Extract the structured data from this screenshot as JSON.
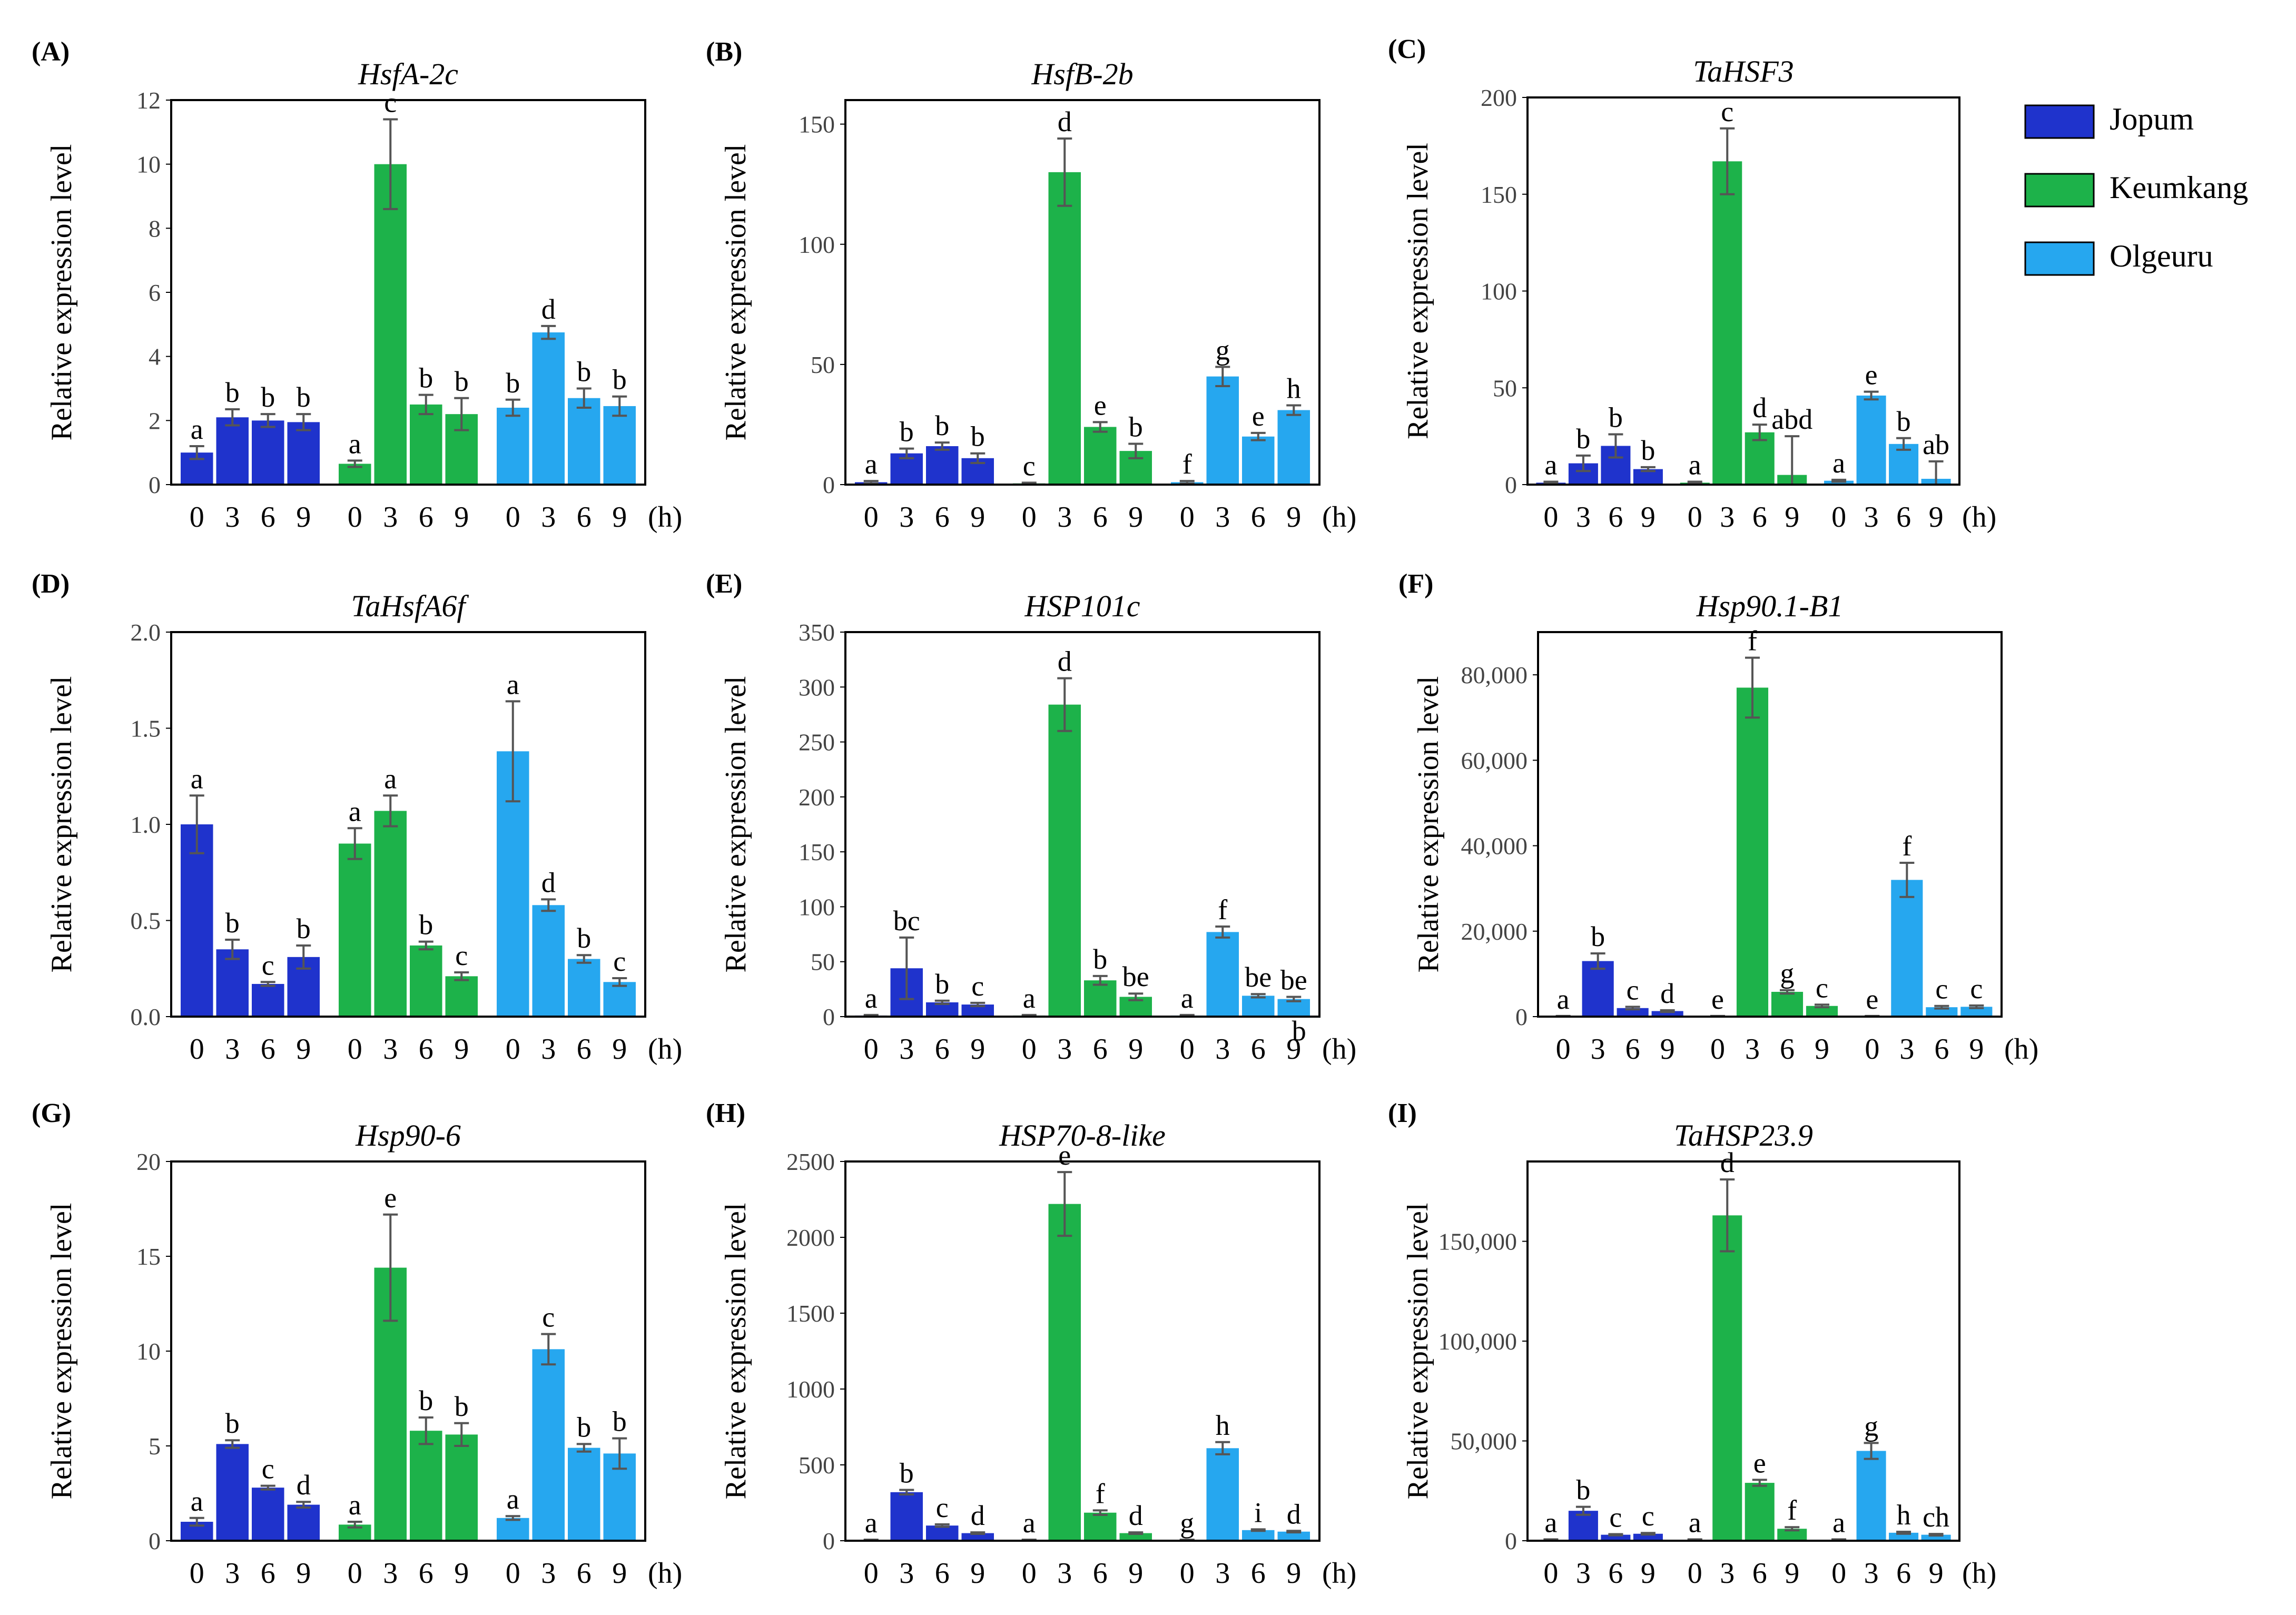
{
  "colors": {
    "Jopum": "#1f33cc",
    "Keumkang": "#1db24a",
    "Olgeuru": "#26a7ef",
    "error_bar": "#555555",
    "axis": "#000000"
  },
  "legend": {
    "entries": [
      "Jopum",
      "Keumkang",
      "Olgeuru"
    ]
  },
  "time_labels": [
    "0",
    "3",
    "6",
    "9"
  ],
  "time_unit": "(h)",
  "chart_data": [
    {
      "type": "bar",
      "panel": "(A)",
      "title": "HsfA-2c",
      "ylabel": "Relative expression level",
      "xlabel": "(h)",
      "categories": [
        "0",
        "3",
        "6",
        "9"
      ],
      "ylim": [
        0,
        12
      ],
      "yticks": [
        "0",
        "2",
        "4",
        "6",
        "8",
        "10",
        "12"
      ],
      "series": [
        {
          "name": "Jopum",
          "values": [
            1.0,
            2.1,
            2.0,
            1.95
          ],
          "errors": [
            0.2,
            0.25,
            0.2,
            0.25
          ],
          "letters": [
            "a",
            "b",
            "b",
            "b"
          ]
        },
        {
          "name": "Keumkang",
          "values": [
            0.65,
            10.0,
            2.5,
            2.2
          ],
          "errors": [
            0.1,
            1.4,
            0.3,
            0.5
          ],
          "letters": [
            "a",
            "c",
            "b",
            "b"
          ]
        },
        {
          "name": "Olgeuru",
          "values": [
            2.4,
            4.75,
            2.7,
            2.45
          ],
          "errors": [
            0.25,
            0.2,
            0.3,
            0.3
          ],
          "letters": [
            "b",
            "d",
            "b",
            "b"
          ]
        }
      ]
    },
    {
      "type": "bar",
      "panel": "(B)",
      "title": "HsfB-2b",
      "ylabel": "Relative expression level",
      "xlabel": "(h)",
      "categories": [
        "0",
        "3",
        "6",
        "9"
      ],
      "ylim": [
        0,
        160
      ],
      "yticks": [
        "0",
        "50",
        "100",
        "150"
      ],
      "series": [
        {
          "name": "Jopum",
          "values": [
            1,
            13,
            16,
            11
          ],
          "errors": [
            0.5,
            2,
            1.5,
            2
          ],
          "letters": [
            "a",
            "b",
            "b",
            "b"
          ]
        },
        {
          "name": "Keumkang",
          "values": [
            0.5,
            130,
            24,
            14
          ],
          "errors": [
            0.3,
            14,
            2,
            3
          ],
          "letters": [
            "c",
            "d",
            "e",
            "b"
          ]
        },
        {
          "name": "Olgeuru",
          "values": [
            1,
            45,
            20,
            31
          ],
          "errors": [
            0.5,
            4,
            1.5,
            2
          ],
          "letters": [
            "f",
            "g",
            "e",
            "h"
          ]
        }
      ]
    },
    {
      "type": "bar",
      "panel": "(C)",
      "title": "TaHSF3",
      "ylabel": "Relative expression level",
      "xlabel": "(h)",
      "categories": [
        "0",
        "3",
        "6",
        "9"
      ],
      "ylim": [
        0,
        200
      ],
      "yticks": [
        "0",
        "50",
        "100",
        "150",
        "200"
      ],
      "series": [
        {
          "name": "Jopum",
          "values": [
            1,
            11,
            20,
            8
          ],
          "errors": [
            0.5,
            4,
            6,
            1
          ],
          "letters": [
            "a",
            "b",
            "b",
            "b"
          ]
        },
        {
          "name": "Keumkang",
          "values": [
            1,
            167,
            27,
            5
          ],
          "errors": [
            0.5,
            17,
            4,
            20
          ],
          "letters": [
            "a",
            "c",
            "d",
            "abd"
          ]
        },
        {
          "name": "Olgeuru",
          "values": [
            2,
            46,
            21,
            3
          ],
          "errors": [
            0.5,
            2,
            3,
            9
          ],
          "letters": [
            "a",
            "e",
            "b",
            "ab"
          ]
        }
      ]
    },
    {
      "type": "bar",
      "panel": "(D)",
      "title": "TaHsfA6f",
      "ylabel": "Relative expression level",
      "xlabel": "(h)",
      "categories": [
        "0",
        "3",
        "6",
        "9"
      ],
      "ylim": [
        0,
        2.0
      ],
      "yticks": [
        "0.0",
        "0.5",
        "1.0",
        "1.5",
        "2.0"
      ],
      "series": [
        {
          "name": "Jopum",
          "values": [
            1.0,
            0.35,
            0.17,
            0.31
          ],
          "errors": [
            0.15,
            0.05,
            0.01,
            0.06
          ],
          "letters": [
            "a",
            "b",
            "c",
            "b"
          ]
        },
        {
          "name": "Keumkang",
          "values": [
            0.9,
            1.07,
            0.37,
            0.21
          ],
          "errors": [
            0.08,
            0.08,
            0.02,
            0.02
          ],
          "letters": [
            "a",
            "a",
            "b",
            "c"
          ]
        },
        {
          "name": "Olgeuru",
          "values": [
            1.38,
            0.58,
            0.3,
            0.18
          ],
          "errors": [
            0.26,
            0.03,
            0.02,
            0.02
          ],
          "letters": [
            "a",
            "d",
            "b",
            "c"
          ]
        }
      ]
    },
    {
      "type": "bar",
      "panel": "(E)",
      "title": "HSP101c",
      "ylabel": "Relative expression level",
      "xlabel": "(h)",
      "categories": [
        "0",
        "3",
        "6",
        "9"
      ],
      "ylim": [
        0,
        350
      ],
      "yticks": [
        "0",
        "50",
        "100",
        "150",
        "200",
        "250",
        "300",
        "350"
      ],
      "series": [
        {
          "name": "Jopum",
          "values": [
            1,
            44,
            13,
            11
          ],
          "errors": [
            0.5,
            28,
            1.5,
            1.5
          ],
          "letters": [
            "a",
            "bc",
            "b",
            "c"
          ]
        },
        {
          "name": "Keumkang",
          "values": [
            1,
            284,
            33,
            18
          ],
          "errors": [
            0.5,
            24,
            4,
            3
          ],
          "letters": [
            "a",
            "d",
            "b",
            "be"
          ]
        },
        {
          "name": "Olgeuru",
          "values": [
            1,
            77,
            19,
            16
          ],
          "errors": [
            0.5,
            5,
            1.5,
            2
          ],
          "letters": [
            "a",
            "f",
            "be",
            "be"
          ]
        }
      ],
      "annotations": [
        "b"
      ]
    },
    {
      "type": "bar",
      "panel": "(F)",
      "title": "Hsp90.1-B1",
      "ylabel": "Relative expression level",
      "xlabel": "(h)",
      "categories": [
        "0",
        "3",
        "6",
        "9"
      ],
      "ylim": [
        0,
        90000
      ],
      "yticks": [
        "0",
        "20,000",
        "40,000",
        "60,000",
        "80,000"
      ],
      "series": [
        {
          "name": "Jopum",
          "values": [
            100,
            13000,
            2000,
            1300
          ],
          "errors": [
            50,
            1800,
            300,
            200
          ],
          "letters": [
            "a",
            "b",
            "c",
            "d"
          ]
        },
        {
          "name": "Keumkang",
          "values": [
            100,
            77000,
            5800,
            2500
          ],
          "errors": [
            50,
            7000,
            400,
            300
          ],
          "letters": [
            "e",
            "f",
            "g",
            "c"
          ]
        },
        {
          "name": "Olgeuru",
          "values": [
            100,
            32000,
            2200,
            2300
          ],
          "errors": [
            50,
            4000,
            300,
            300
          ],
          "letters": [
            "e",
            "f",
            "c",
            "c"
          ]
        }
      ]
    },
    {
      "type": "bar",
      "panel": "(G)",
      "title": "Hsp90-6",
      "ylabel": "Relative expression level",
      "xlabel": "(h)",
      "categories": [
        "0",
        "3",
        "6",
        "9"
      ],
      "ylim": [
        0,
        20
      ],
      "yticks": [
        "0",
        "5",
        "10",
        "15",
        "20"
      ],
      "series": [
        {
          "name": "Jopum",
          "values": [
            1.0,
            5.1,
            2.8,
            1.9
          ],
          "errors": [
            0.2,
            0.2,
            0.1,
            0.15
          ],
          "letters": [
            "a",
            "b",
            "c",
            "d"
          ]
        },
        {
          "name": "Keumkang",
          "values": [
            0.85,
            14.4,
            5.8,
            5.6
          ],
          "errors": [
            0.15,
            2.8,
            0.7,
            0.6
          ],
          "letters": [
            "a",
            "e",
            "b",
            "b"
          ]
        },
        {
          "name": "Olgeuru",
          "values": [
            1.2,
            10.1,
            4.9,
            4.6
          ],
          "errors": [
            0.1,
            0.8,
            0.2,
            0.8
          ],
          "letters": [
            "a",
            "c",
            "b",
            "b"
          ]
        }
      ]
    },
    {
      "type": "bar",
      "panel": "(H)",
      "title": "HSP70-8-like",
      "ylabel": "Relative expression level",
      "xlabel": "(h)",
      "categories": [
        "0",
        "3",
        "6",
        "9"
      ],
      "ylim": [
        0,
        2500
      ],
      "yticks": [
        "0",
        "500",
        "1000",
        "1500",
        "2000",
        "2500"
      ],
      "series": [
        {
          "name": "Jopum",
          "values": [
            5,
            320,
            100,
            50
          ],
          "errors": [
            2,
            15,
            8,
            5
          ],
          "letters": [
            "a",
            "b",
            "c",
            "d"
          ]
        },
        {
          "name": "Keumkang",
          "values": [
            5,
            2220,
            185,
            50
          ],
          "errors": [
            2,
            210,
            15,
            5
          ],
          "letters": [
            "a",
            "e",
            "f",
            "d"
          ]
        },
        {
          "name": "Olgeuru",
          "values": [
            5,
            610,
            70,
            60
          ],
          "errors": [
            2,
            40,
            5,
            5
          ],
          "letters": [
            "g",
            "h",
            "i",
            "d"
          ]
        }
      ]
    },
    {
      "type": "bar",
      "panel": "(I)",
      "title": "TaHSP23.9",
      "ylabel": "Relative expression level",
      "xlabel": "(h)",
      "categories": [
        "0",
        "3",
        "6",
        "9"
      ],
      "ylim": [
        0,
        190000
      ],
      "yticks": [
        "0",
        "50,000",
        "100,000",
        "150,000"
      ],
      "series": [
        {
          "name": "Jopum",
          "values": [
            500,
            15000,
            3000,
            3500
          ],
          "errors": [
            200,
            2000,
            300,
            400
          ],
          "letters": [
            "a",
            "b",
            "c",
            "c"
          ]
        },
        {
          "name": "Keumkang",
          "values": [
            500,
            163000,
            29000,
            6000
          ],
          "errors": [
            200,
            18000,
            1500,
            800
          ],
          "letters": [
            "a",
            "d",
            "e",
            "f"
          ]
        },
        {
          "name": "Olgeuru",
          "values": [
            500,
            45000,
            4000,
            3000
          ],
          "errors": [
            200,
            4000,
            500,
            400
          ],
          "letters": [
            "a",
            "g",
            "h",
            "ch"
          ]
        }
      ]
    }
  ]
}
